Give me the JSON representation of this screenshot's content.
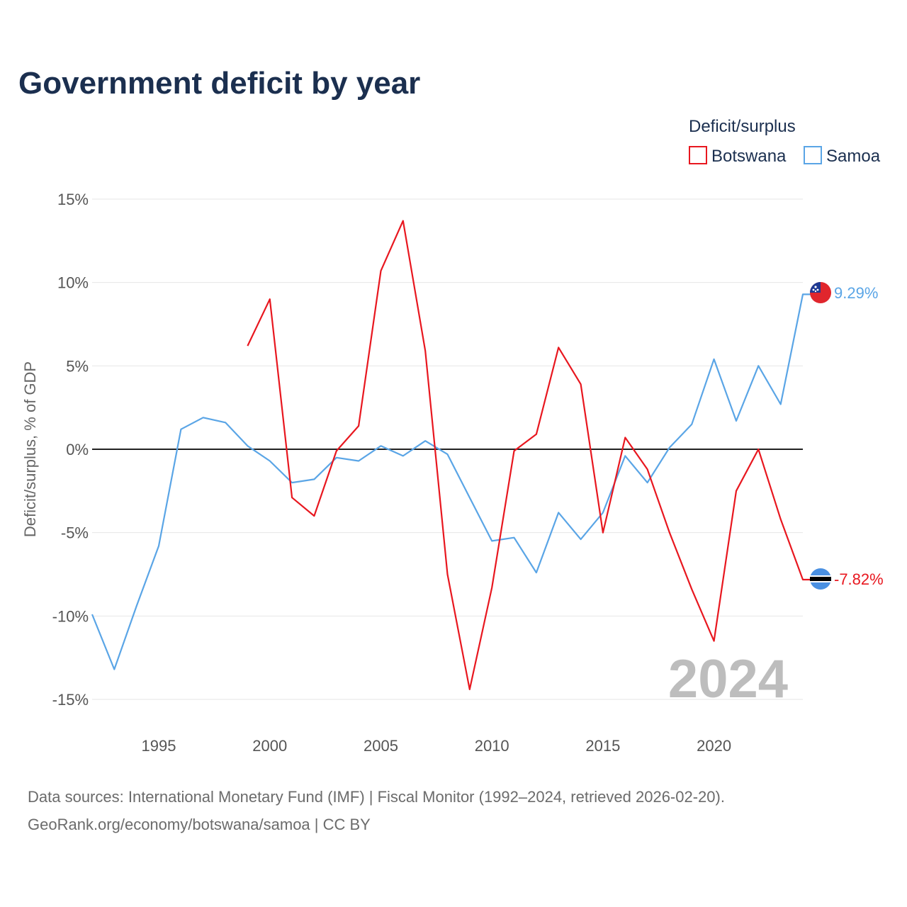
{
  "chart_data": {
    "type": "line",
    "title": "Government deficit by year",
    "xlabel": "",
    "ylabel": "Deficit/surplus, % of GDP",
    "ylim": [
      -15,
      15
    ],
    "xlim": [
      1992,
      2024
    ],
    "y_ticks": [
      15,
      10,
      5,
      0,
      -5,
      -10,
      -15
    ],
    "y_tick_labels": [
      "15%",
      "10%",
      "5%",
      "0%",
      "-5%",
      "-10%",
      "-15%"
    ],
    "x_ticks": [
      1995,
      2000,
      2005,
      2010,
      2015,
      2020
    ],
    "x_tick_labels": [
      "1995",
      "2000",
      "2005",
      "2010",
      "2015",
      "2020"
    ],
    "legend_title": "Deficit/surplus",
    "legend_position": "top-right",
    "watermark_year": "2024",
    "grid": true,
    "series": [
      {
        "name": "Botswana",
        "color": "#e8171f",
        "end_label": "-7.82%",
        "flag": "botswana-flag",
        "x": [
          1999,
          2000,
          2001,
          2002,
          2003,
          2004,
          2005,
          2006,
          2007,
          2008,
          2009,
          2010,
          2011,
          2012,
          2013,
          2014,
          2015,
          2016,
          2017,
          2018,
          2019,
          2020,
          2021,
          2022,
          2023,
          2024
        ],
        "values": [
          6.2,
          9.0,
          -2.9,
          -4.0,
          -0.1,
          1.4,
          10.7,
          13.7,
          5.9,
          -7.5,
          -14.4,
          -8.3,
          -0.1,
          0.9,
          6.1,
          3.9,
          -5.0,
          0.7,
          -1.2,
          -5.0,
          -8.4,
          -11.5,
          -2.5,
          0.0,
          -4.2,
          -7.82
        ]
      },
      {
        "name": "Samoa",
        "color": "#5aa5e6",
        "end_label": "9.29%",
        "flag": "samoa-flag",
        "x": [
          1992,
          1993,
          1994,
          1995,
          1996,
          1997,
          1998,
          1999,
          2000,
          2001,
          2002,
          2003,
          2004,
          2005,
          2006,
          2007,
          2008,
          2009,
          2010,
          2011,
          2012,
          2013,
          2014,
          2015,
          2016,
          2017,
          2018,
          2019,
          2020,
          2021,
          2022,
          2023,
          2024
        ],
        "values": [
          -9.9,
          -13.2,
          -9.4,
          -5.8,
          1.2,
          1.9,
          1.6,
          0.2,
          -0.7,
          -2.0,
          -1.8,
          -0.5,
          -0.7,
          0.2,
          -0.4,
          0.5,
          -0.3,
          -2.9,
          -5.5,
          -5.3,
          -7.4,
          -3.8,
          -5.4,
          -3.8,
          -0.4,
          -2.0,
          0.1,
          1.5,
          5.4,
          1.7,
          5.0,
          2.7,
          9.29
        ]
      }
    ]
  },
  "footer": {
    "sources": "Data sources: International Monetary Fund (IMF) | Fiscal Monitor (1992–2024, retrieved 2026-02-20).",
    "attribution": "GeoRank.org/economy/botswana/samoa | CC BY"
  }
}
